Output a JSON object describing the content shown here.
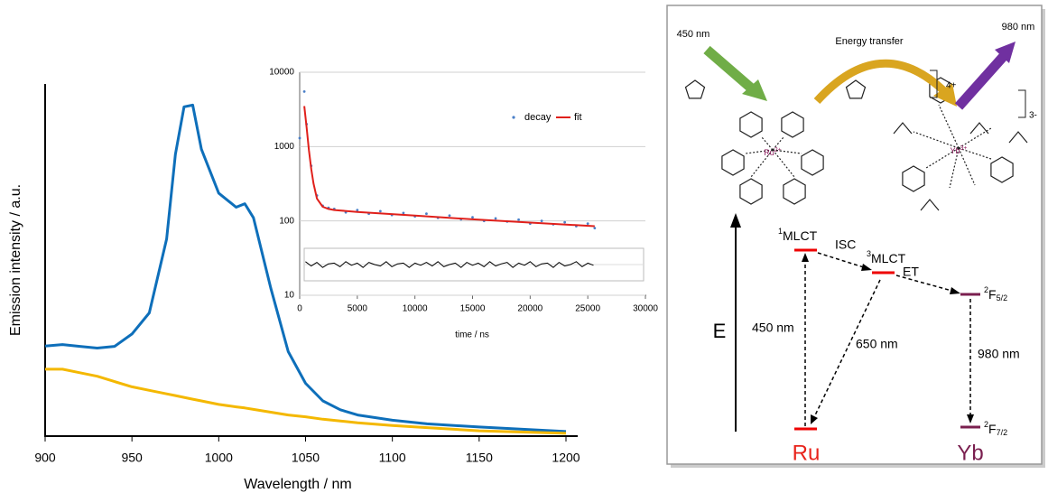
{
  "chart_data": [
    {
      "type": "line",
      "xlabel": "Wavelength / nm",
      "ylabel": "Emission intensity / a.u.",
      "x": [
        900,
        910,
        920,
        930,
        940,
        950,
        960,
        970,
        975,
        980,
        985,
        990,
        1000,
        1010,
        1015,
        1020,
        1030,
        1040,
        1050,
        1060,
        1070,
        1080,
        1100,
        1120,
        1150,
        1200
      ],
      "xlim": [
        900,
        1200
      ],
      "xticks": [
        900,
        950,
        1000,
        1050,
        1100,
        1150,
        1200
      ],
      "ylim": [
        0,
        1
      ],
      "series": [
        {
          "color": "#0e6fba",
          "values": [
            0.256,
            0.26,
            0.255,
            0.25,
            0.255,
            0.29,
            0.35,
            0.56,
            0.8,
            0.935,
            0.94,
            0.815,
            0.69,
            0.65,
            0.66,
            0.62,
            0.42,
            0.24,
            0.15,
            0.1,
            0.075,
            0.06,
            0.045,
            0.035,
            0.026,
            0.013
          ]
        },
        {
          "color": "#f4b800",
          "values": [
            0.19,
            0.19,
            0.18,
            0.17,
            0.155,
            0.14,
            0.13,
            0.12,
            0.115,
            0.11,
            0.105,
            0.1,
            0.09,
            0.083,
            0.08,
            0.076,
            0.068,
            0.06,
            0.055,
            0.048,
            0.043,
            0.038,
            0.03,
            0.024,
            0.015,
            0.008
          ]
        }
      ]
    },
    {
      "type": "line",
      "xlabel": "time / ns",
      "xlim": [
        0,
        30000
      ],
      "xticks": [
        0,
        5000,
        10000,
        15000,
        20000,
        25000,
        30000
      ],
      "ylim": [
        10,
        10000
      ],
      "yticks": [
        10,
        100,
        1000,
        10000
      ],
      "log_y": true,
      "grid": true,
      "legend": "upper right",
      "series": [
        {
          "name": "decay",
          "color": "#4a7fc8",
          "mode": "markers",
          "x": [
            0,
            400,
            600,
            1000,
            1500,
            2000,
            2500,
            3000,
            4000,
            5000,
            6000,
            7000,
            8000,
            9000,
            10000,
            11000,
            12000,
            13000,
            14000,
            15000,
            16000,
            17000,
            18000,
            19000,
            20000,
            21000,
            22000,
            23000,
            24000,
            25000,
            25600
          ],
          "values": [
            1300,
            5500,
            2000,
            550,
            220,
            160,
            150,
            145,
            130,
            140,
            125,
            135,
            120,
            128,
            115,
            125,
            110,
            118,
            105,
            112,
            100,
            108,
            98,
            104,
            92,
            100,
            90,
            96,
            85,
            92,
            80
          ]
        },
        {
          "name": "fit",
          "color": "#e0201b",
          "mode": "line",
          "x": [
            400,
            600,
            800,
            1000,
            1200,
            1500,
            2000,
            2500,
            3000,
            5000,
            10000,
            15000,
            20000,
            25600
          ],
          "values": [
            3500,
            1800,
            900,
            500,
            320,
            200,
            155,
            145,
            140,
            132,
            118,
            105,
            95,
            85
          ]
        }
      ],
      "residual": {
        "color": "#000000",
        "ylim": [
          -1,
          1
        ],
        "x": [
          500,
          1000,
          1500,
          2000,
          2500,
          3000,
          3500,
          4000,
          4500,
          5000,
          5500,
          6000,
          6500,
          7000,
          7500,
          8000,
          8500,
          9000,
          9500,
          10000,
          10500,
          11000,
          11500,
          12000,
          12500,
          13000,
          13500,
          14000,
          14500,
          15000,
          15500,
          16000,
          16500,
          17000,
          17500,
          18000,
          18500,
          19000,
          19500,
          20000,
          20500,
          21000,
          21500,
          22000,
          22500,
          23000,
          23500,
          24000,
          24500,
          25000,
          25500
        ],
        "values": [
          0.2,
          -0.1,
          0.15,
          -0.2,
          0.05,
          0.1,
          -0.15,
          0.2,
          -0.05,
          0.1,
          -0.2,
          0.15,
          0,
          -0.1,
          0.2,
          -0.15,
          0.05,
          0.1,
          -0.2,
          0.1,
          -0.05,
          0.15,
          -0.1,
          0.2,
          -0.15,
          0,
          0.1,
          -0.2,
          0.15,
          -0.05,
          0.1,
          -0.15,
          0.2,
          -0.1,
          0.05,
          0.15,
          -0.2,
          0.1,
          -0.05,
          0.2,
          -0.15,
          0.05,
          0.1,
          -0.2,
          0.15,
          -0.1,
          0,
          0.2,
          -0.15,
          0.1,
          -0.05
        ]
      }
    }
  ],
  "diagram": {
    "excitation": "450 nm",
    "emission": "980 nm",
    "transfer": "Energy transfer",
    "charges": [
      "4+",
      "3-"
    ],
    "metals": [
      {
        "symbol": "Ru",
        "charge": "2+"
      },
      {
        "symbol": "Yb",
        "charge": "3+"
      }
    ],
    "levels": [
      {
        "sup": "1",
        "label": "MLCT"
      },
      {
        "sup": "3",
        "label": "MLCT"
      },
      {
        "sup": "2",
        "label": "F",
        "sub": "5/2"
      },
      {
        "sup": "2",
        "label": "F",
        "sub": "7/2"
      }
    ],
    "transitions": [
      "ISC",
      "ET",
      "450 nm",
      "650 nm",
      "980 nm"
    ],
    "axis": "E",
    "species": [
      "Ru",
      "Yb"
    ]
  }
}
